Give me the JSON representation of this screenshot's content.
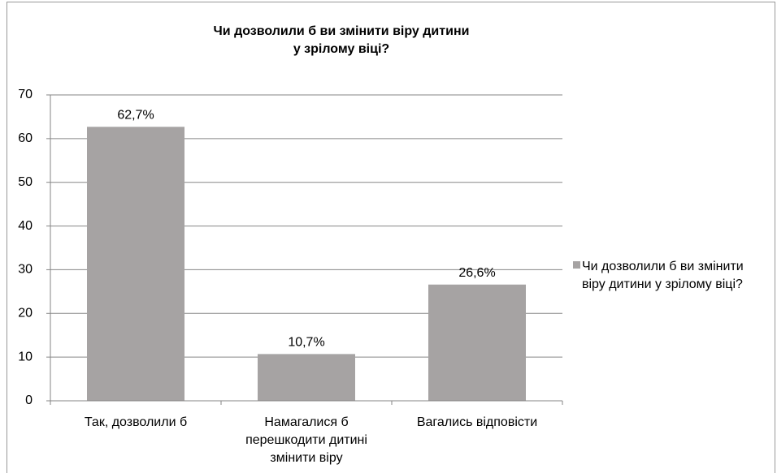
{
  "chart_data": {
    "type": "bar",
    "title": [
      "Чи дозволили б ви змінити віру дитини",
      "у зрілому віці?"
    ],
    "categories": [
      "Так, дозволили б",
      "Намагалися б перешкодити дитині змінити віру",
      "Вагались відповісти"
    ],
    "series": [
      {
        "name": "Чи дозволили б ви змінити віру дитини у зрілому віці?",
        "color": "#a6a3a3",
        "values": [
          62.7,
          10.7,
          26.6
        ],
        "value_labels": [
          "62,7%",
          "10,7%",
          "26,6%"
        ]
      }
    ],
    "ylim": [
      0,
      70
    ],
    "yticks": [
      0,
      10,
      20,
      30,
      40,
      50,
      60,
      70
    ],
    "grid": true,
    "legend": "right"
  }
}
